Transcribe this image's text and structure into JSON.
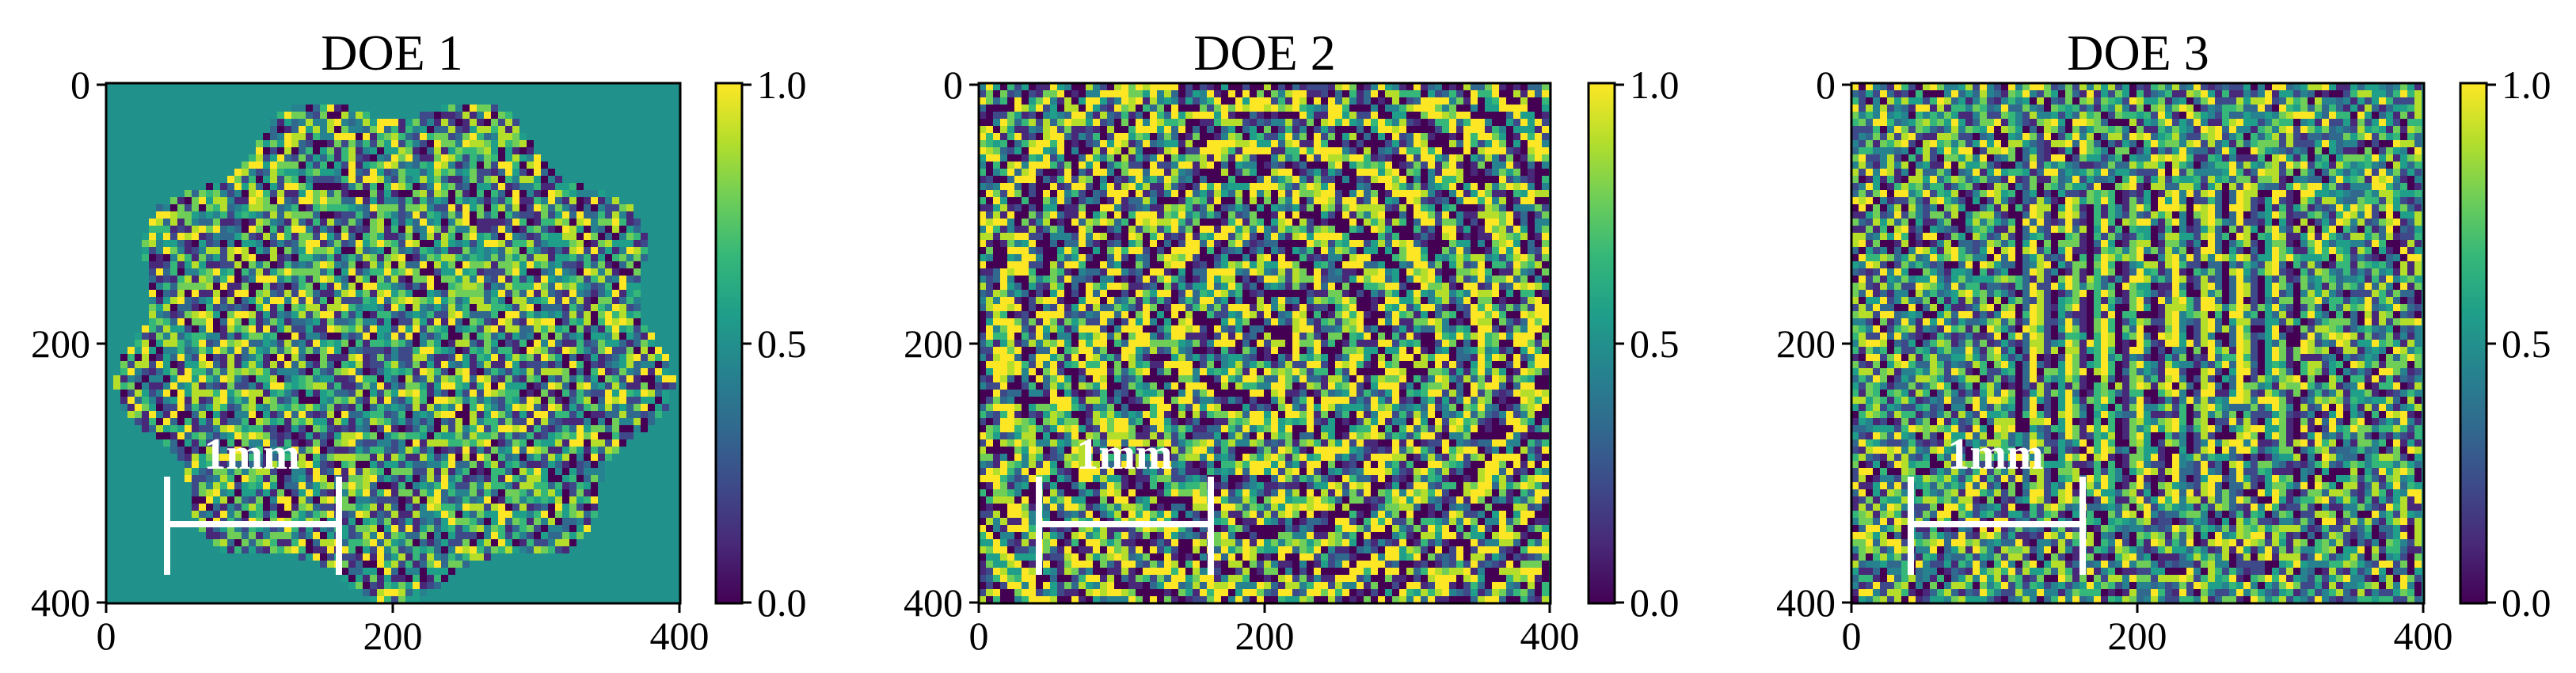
{
  "figure": {
    "colors": {
      "viridis": [
        "#440154",
        "#482878",
        "#3e4989",
        "#31688e",
        "#26828e",
        "#1f9e89",
        "#35b779",
        "#6ece58",
        "#b5de2b",
        "#fde725"
      ],
      "background_value_color": "#21918c"
    }
  },
  "chart_data": [
    {
      "type": "heatmap",
      "title": "DOE 1",
      "xlim": [
        0,
        400
      ],
      "ylim": [
        400,
        0
      ],
      "xticks": [
        "0",
        "200",
        "400"
      ],
      "yticks": [
        "0",
        "200",
        "400"
      ],
      "colorbar": {
        "range": [
          0.0,
          1.0
        ],
        "ticks": [
          "0.0",
          "0.5",
          "1.0"
        ],
        "colormap": "viridis"
      },
      "scale_bar": {
        "label": "1mm",
        "x_start": 45,
        "x_end": 165,
        "y": 340
      },
      "pattern": "speckle field bounded by a jagged near-circular aperture; uniform value ~0.55 outside aperture"
    },
    {
      "type": "heatmap",
      "title": "DOE 2",
      "xlim": [
        0,
        400
      ],
      "ylim": [
        400,
        0
      ],
      "xticks": [
        "0",
        "200",
        "400"
      ],
      "yticks": [
        "0",
        "200",
        "400"
      ],
      "colorbar": {
        "range": [
          0.0,
          1.0
        ],
        "ticks": [
          "0.0",
          "0.5",
          "1.0"
        ],
        "colormap": "viridis"
      },
      "scale_bar": {
        "label": "1mm",
        "x_start": 45,
        "x_end": 165,
        "y": 340
      },
      "pattern": "full-field speckle with concentric ring structure"
    },
    {
      "type": "heatmap",
      "title": "DOE 3",
      "xlim": [
        0,
        400
      ],
      "ylim": [
        400,
        0
      ],
      "xticks": [
        "0",
        "200",
        "400"
      ],
      "yticks": [
        "0",
        "200",
        "400"
      ],
      "colorbar": {
        "range": [
          0.0,
          1.0
        ],
        "ticks": [
          "0.0",
          "0.5",
          "1.0"
        ],
        "colormap": "viridis"
      },
      "scale_bar": {
        "label": "1mm",
        "x_start": 45,
        "x_end": 165,
        "y": 340
      },
      "pattern": "full-field noise with 3x3 block pattern of fringes in the center"
    }
  ]
}
